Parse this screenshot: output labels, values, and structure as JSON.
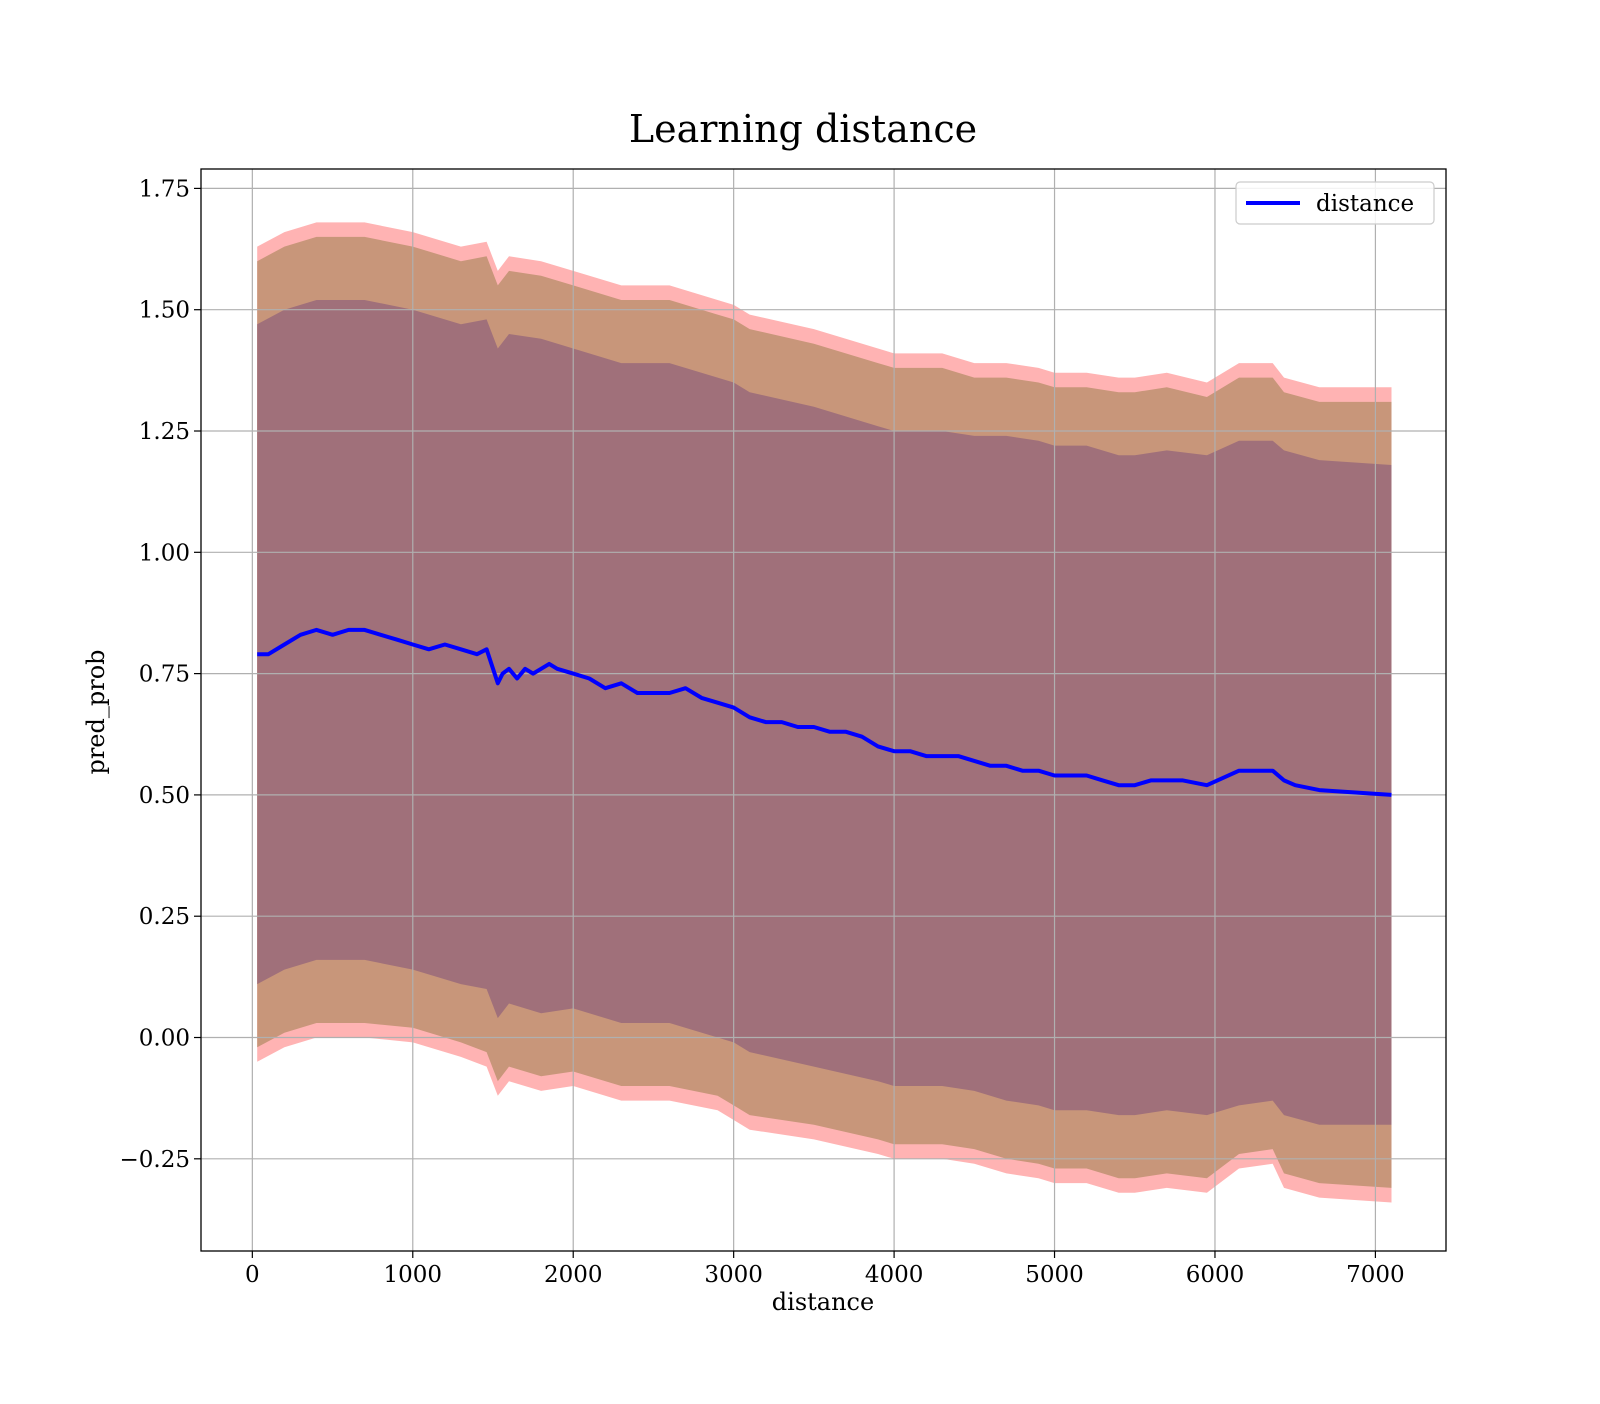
{
  "chart_data": {
    "type": "area",
    "title": "Learning distance",
    "xlabel": "distance",
    "ylabel": "pred_prob",
    "xlim": [
      -320,
      7440
    ],
    "ylim": [
      -0.44,
      1.79
    ],
    "xticks": [
      0,
      1000,
      2000,
      3000,
      4000,
      5000,
      6000,
      7000
    ],
    "xtick_labels": [
      "0",
      "1000",
      "2000",
      "3000",
      "4000",
      "5000",
      "6000",
      "7000"
    ],
    "yticks": [
      -0.25,
      0.0,
      0.25,
      0.5,
      0.75,
      1.0,
      1.25,
      1.5,
      1.75
    ],
    "ytick_labels": [
      "−0.25",
      "0.00",
      "0.25",
      "0.50",
      "0.75",
      "1.00",
      "1.25",
      "1.50",
      "1.75"
    ],
    "grid": true,
    "legend": {
      "position": "top-right",
      "entries": [
        "distance"
      ]
    },
    "colors": {
      "line": "#0000ff",
      "band_outer": "#ffb3b3",
      "band_middle": "#c8967a",
      "band_inner": "#a0707a"
    },
    "series": [
      {
        "name": "distance",
        "style": "line",
        "x": [
          30,
          100,
          200,
          300,
          400,
          500,
          600,
          700,
          800,
          900,
          1000,
          1100,
          1200,
          1300,
          1400,
          1460,
          1490,
          1530,
          1560,
          1600,
          1650,
          1700,
          1750,
          1800,
          1850,
          1900,
          2000,
          2100,
          2200,
          2300,
          2400,
          2500,
          2600,
          2700,
          2800,
          2900,
          3000,
          3100,
          3200,
          3300,
          3400,
          3500,
          3600,
          3700,
          3800,
          3900,
          4000,
          4100,
          4200,
          4300,
          4400,
          4500,
          4600,
          4700,
          4800,
          4900,
          5000,
          5100,
          5200,
          5300,
          5400,
          5500,
          5600,
          5700,
          5800,
          5950,
          6150,
          6360,
          6430,
          6500,
          6650,
          7100
        ],
        "y": [
          0.79,
          0.79,
          0.81,
          0.83,
          0.84,
          0.83,
          0.84,
          0.84,
          0.83,
          0.82,
          0.81,
          0.8,
          0.81,
          0.8,
          0.79,
          0.8,
          0.77,
          0.73,
          0.75,
          0.76,
          0.74,
          0.76,
          0.75,
          0.76,
          0.77,
          0.76,
          0.75,
          0.74,
          0.72,
          0.73,
          0.71,
          0.71,
          0.71,
          0.72,
          0.7,
          0.69,
          0.68,
          0.66,
          0.65,
          0.65,
          0.64,
          0.64,
          0.63,
          0.63,
          0.62,
          0.6,
          0.59,
          0.59,
          0.58,
          0.58,
          0.58,
          0.57,
          0.56,
          0.56,
          0.55,
          0.55,
          0.54,
          0.54,
          0.54,
          0.53,
          0.52,
          0.52,
          0.53,
          0.53,
          0.53,
          0.52,
          0.55,
          0.55,
          0.53,
          0.52,
          0.51,
          0.5
        ]
      },
      {
        "name": "",
        "style": "band",
        "x": [
          30,
          200,
          400,
          700,
          1000,
          1300,
          1460,
          1530,
          1600,
          1800,
          2000,
          2300,
          2600,
          2900,
          3000,
          3100,
          3500,
          3900,
          4000,
          4300,
          4500,
          4700,
          4900,
          5000,
          5200,
          5400,
          5500,
          5700,
          5950,
          6150,
          6360,
          6430,
          6650,
          7100
        ],
        "lower": [
          -0.05,
          -0.02,
          0.0,
          0.0,
          -0.01,
          -0.04,
          -0.06,
          -0.12,
          -0.09,
          -0.11,
          -0.1,
          -0.13,
          -0.13,
          -0.15,
          -0.17,
          -0.19,
          -0.21,
          -0.24,
          -0.25,
          -0.25,
          -0.26,
          -0.28,
          -0.29,
          -0.3,
          -0.3,
          -0.32,
          -0.32,
          -0.31,
          -0.32,
          -0.27,
          -0.26,
          -0.31,
          -0.33,
          -0.34
        ],
        "upper": [
          1.63,
          1.66,
          1.68,
          1.68,
          1.66,
          1.63,
          1.64,
          1.58,
          1.61,
          1.6,
          1.58,
          1.55,
          1.55,
          1.52,
          1.51,
          1.49,
          1.46,
          1.42,
          1.41,
          1.41,
          1.39,
          1.39,
          1.38,
          1.37,
          1.37,
          1.36,
          1.36,
          1.37,
          1.35,
          1.39,
          1.39,
          1.36,
          1.34,
          1.34
        ]
      },
      {
        "name": "",
        "style": "band",
        "x": [
          30,
          200,
          400,
          700,
          1000,
          1300,
          1460,
          1530,
          1600,
          1800,
          2000,
          2300,
          2600,
          2900,
          3000,
          3100,
          3500,
          3900,
          4000,
          4300,
          4500,
          4700,
          4900,
          5000,
          5200,
          5400,
          5500,
          5700,
          5950,
          6150,
          6360,
          6430,
          6650,
          7100
        ],
        "lower": [
          -0.02,
          0.01,
          0.03,
          0.03,
          0.02,
          -0.01,
          -0.03,
          -0.09,
          -0.06,
          -0.08,
          -0.07,
          -0.1,
          -0.1,
          -0.12,
          -0.14,
          -0.16,
          -0.18,
          -0.21,
          -0.22,
          -0.22,
          -0.23,
          -0.25,
          -0.26,
          -0.27,
          -0.27,
          -0.29,
          -0.29,
          -0.28,
          -0.29,
          -0.24,
          -0.23,
          -0.28,
          -0.3,
          -0.31
        ],
        "upper": [
          1.6,
          1.63,
          1.65,
          1.65,
          1.63,
          1.6,
          1.61,
          1.55,
          1.58,
          1.57,
          1.55,
          1.52,
          1.52,
          1.49,
          1.48,
          1.46,
          1.43,
          1.39,
          1.38,
          1.38,
          1.36,
          1.36,
          1.35,
          1.34,
          1.34,
          1.33,
          1.33,
          1.34,
          1.32,
          1.36,
          1.36,
          1.33,
          1.31,
          1.31
        ]
      },
      {
        "name": "",
        "style": "band",
        "x": [
          30,
          200,
          400,
          700,
          1000,
          1300,
          1460,
          1530,
          1600,
          1800,
          2000,
          2300,
          2600,
          2900,
          3000,
          3100,
          3500,
          3900,
          4000,
          4300,
          4500,
          4700,
          4900,
          5000,
          5200,
          5400,
          5500,
          5700,
          5950,
          6150,
          6360,
          6430,
          6650,
          7100
        ],
        "lower": [
          0.11,
          0.14,
          0.16,
          0.16,
          0.14,
          0.11,
          0.1,
          0.04,
          0.07,
          0.05,
          0.06,
          0.03,
          0.03,
          0.0,
          -0.01,
          -0.03,
          -0.06,
          -0.09,
          -0.1,
          -0.1,
          -0.11,
          -0.13,
          -0.14,
          -0.15,
          -0.15,
          -0.16,
          -0.16,
          -0.15,
          -0.16,
          -0.14,
          -0.13,
          -0.16,
          -0.18,
          -0.18
        ],
        "upper": [
          1.47,
          1.5,
          1.52,
          1.52,
          1.5,
          1.47,
          1.48,
          1.42,
          1.45,
          1.44,
          1.42,
          1.39,
          1.39,
          1.36,
          1.35,
          1.33,
          1.3,
          1.26,
          1.25,
          1.25,
          1.24,
          1.24,
          1.23,
          1.22,
          1.22,
          1.2,
          1.2,
          1.21,
          1.2,
          1.23,
          1.23,
          1.21,
          1.19,
          1.18
        ]
      }
    ]
  }
}
